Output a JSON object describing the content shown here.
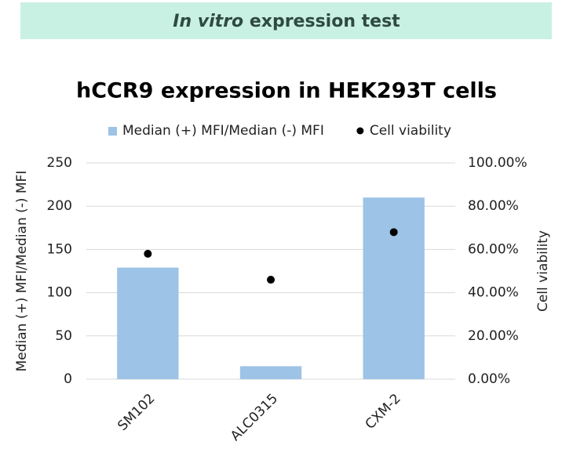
{
  "banner": {
    "emphasis": "In vitro",
    "text": "expression test"
  },
  "chart_data": {
    "type": "bar",
    "title": "hCCR9 expression in HEK293T cells",
    "categories": [
      "SM102",
      "ALC0315",
      "CXM-2"
    ],
    "series": [
      {
        "name": "Median (+) MFI/Median (-) MFI",
        "color": "#9dc3e6",
        "type": "bar",
        "values": [
          129,
          15,
          210
        ]
      },
      {
        "name": "Cell viability",
        "color": "#000000",
        "type": "scatter",
        "axis": "y2",
        "values": [
          58,
          46,
          68
        ]
      }
    ],
    "ylabel": "Median (+) MFI/Median (-) MFI",
    "y2label": "Cell viability",
    "ylim": [
      0,
      250
    ],
    "yticks": [
      0,
      50,
      100,
      150,
      200,
      250
    ],
    "y2lim": [
      0,
      100
    ],
    "y2ticks": [
      {
        "value": 0,
        "label": "0.00%"
      },
      {
        "value": 20,
        "label": "20.00%"
      },
      {
        "value": 40,
        "label": "40.00%"
      },
      {
        "value": 60,
        "label": "60.00%"
      },
      {
        "value": 80,
        "label": "80.00%"
      },
      {
        "value": 100,
        "label": "100.00%"
      }
    ],
    "grid": true,
    "legend": "top"
  }
}
